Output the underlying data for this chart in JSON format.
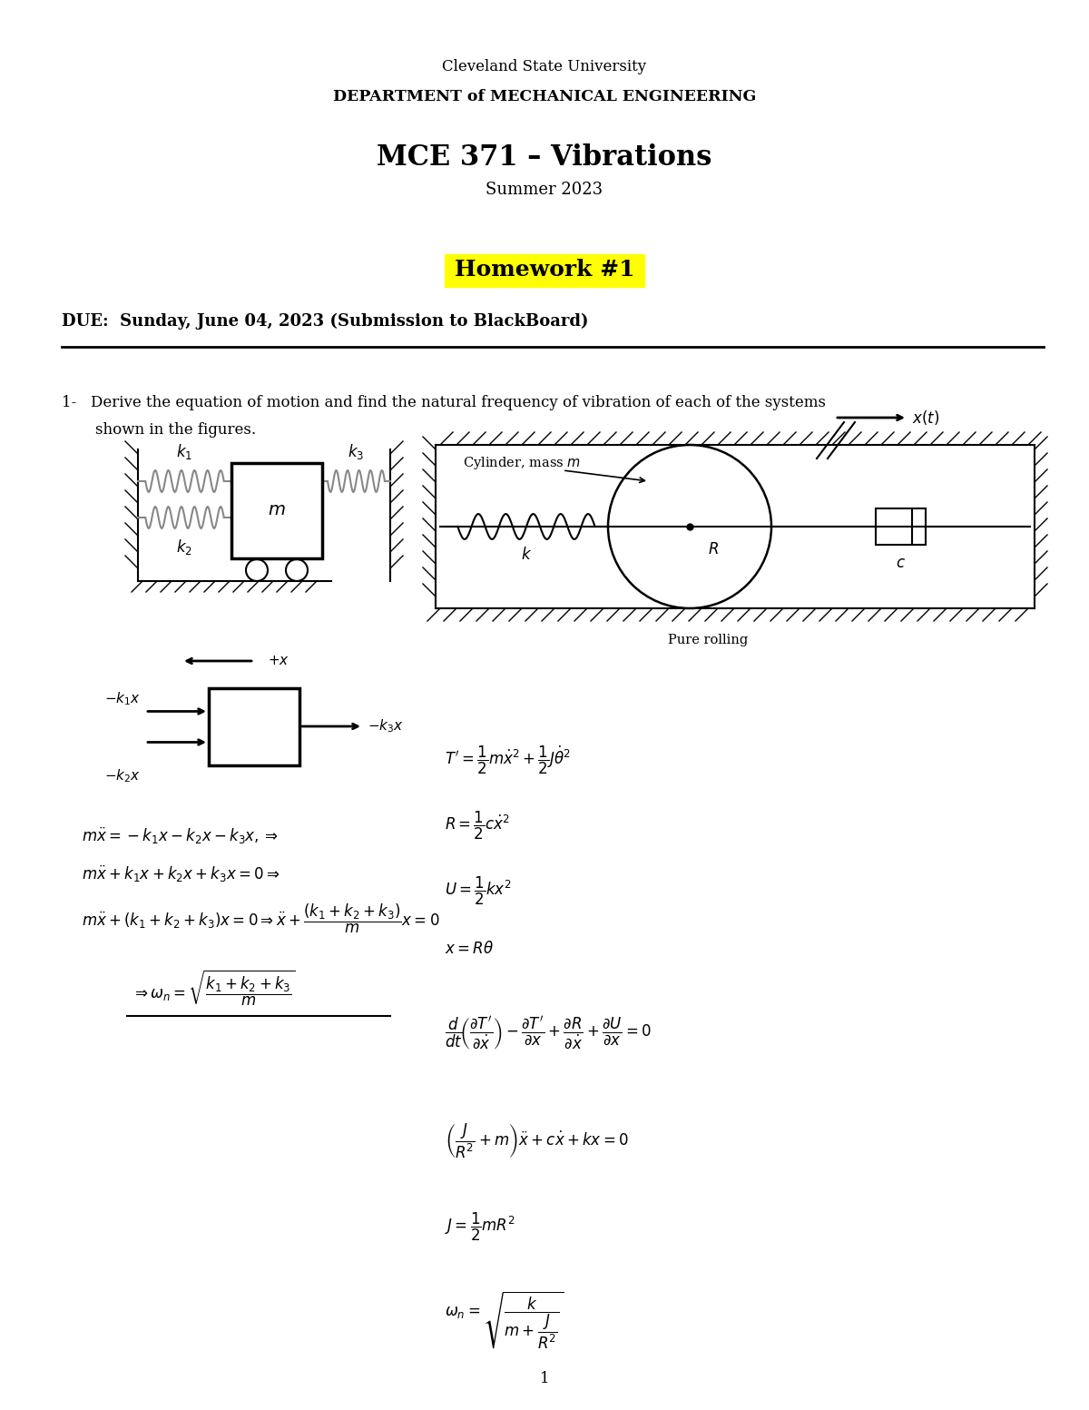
{
  "university_line1": "Cleveland State University",
  "university_line2": "DEPARTMENT of MECHANICAL ENGINEERING",
  "course_title": "MCE 371 – Vibrations",
  "semester": "Summer 2023",
  "homework_title": "Homework #1",
  "due_text": "DUE:  Sunday, June 04, 2023 (Submission to BlackBoard)",
  "page_number": "1",
  "bg_color": "#ffffff",
  "highlight_color": "#ffff00",
  "text_color": "#000000",
  "gray_spring": "#888888"
}
